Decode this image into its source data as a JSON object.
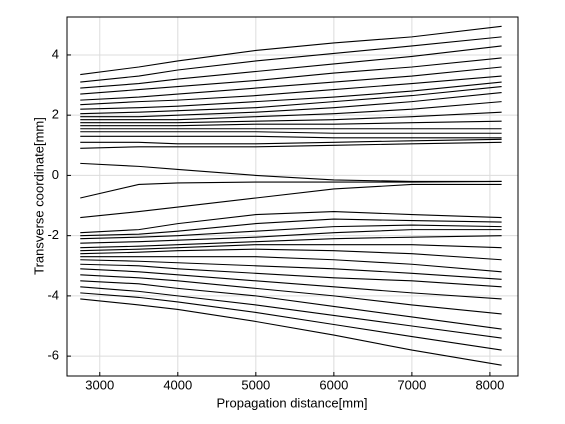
{
  "chart_data": {
    "type": "line",
    "xlabel": "Propagation distance[mm]",
    "ylabel": "Transverse coordinate[mm]",
    "x": [
      2750,
      3500,
      4000,
      5000,
      6000,
      7000,
      8150
    ],
    "xlim": [
      2580,
      8360
    ],
    "ylim": [
      -6.66,
      5.26
    ],
    "xticks": [
      3000,
      4000,
      5000,
      6000,
      7000,
      8000
    ],
    "yticks": [
      -6,
      -4,
      -2,
      0,
      2,
      4
    ],
    "grid": true,
    "color": "#000000",
    "series": [
      {
        "values": [
          3.35,
          3.6,
          3.8,
          4.15,
          4.4,
          4.6,
          4.95
        ]
      },
      {
        "values": [
          3.1,
          3.3,
          3.5,
          3.8,
          4.05,
          4.3,
          4.6
        ]
      },
      {
        "values": [
          2.9,
          3.05,
          3.2,
          3.45,
          3.7,
          3.95,
          4.3
        ]
      },
      {
        "values": [
          2.7,
          2.85,
          2.95,
          3.15,
          3.4,
          3.6,
          3.9
        ]
      },
      {
        "values": [
          2.5,
          2.6,
          2.7,
          2.9,
          3.1,
          3.3,
          3.6
        ]
      },
      {
        "values": [
          2.35,
          2.45,
          2.5,
          2.65,
          2.85,
          3.05,
          3.3
        ]
      },
      {
        "values": [
          2.2,
          2.25,
          2.3,
          2.45,
          2.6,
          2.8,
          3.1
        ]
      },
      {
        "values": [
          2.05,
          2.1,
          2.15,
          2.25,
          2.45,
          2.65,
          2.95
        ]
      },
      {
        "values": [
          1.95,
          1.95,
          2.0,
          2.1,
          2.25,
          2.45,
          2.75
        ]
      },
      {
        "values": [
          1.85,
          1.85,
          1.85,
          1.95,
          2.05,
          2.2,
          2.45
        ]
      },
      {
        "values": [
          1.75,
          1.75,
          1.75,
          1.8,
          1.85,
          1.95,
          2.1
        ]
      },
      {
        "values": [
          1.65,
          1.65,
          1.65,
          1.7,
          1.7,
          1.75,
          1.8
        ]
      },
      {
        "values": [
          1.55,
          1.55,
          1.55,
          1.55,
          1.55,
          1.55,
          1.55
        ]
      },
      {
        "values": [
          1.45,
          1.45,
          1.45,
          1.45,
          1.4,
          1.4,
          1.4
        ]
      },
      {
        "values": [
          1.3,
          1.3,
          1.3,
          1.3,
          1.25,
          1.25,
          1.25
        ]
      },
      {
        "values": [
          1.1,
          1.1,
          1.05,
          1.05,
          1.1,
          1.15,
          1.2
        ]
      },
      {
        "values": [
          0.9,
          0.95,
          0.95,
          0.95,
          1.0,
          1.05,
          1.1
        ]
      },
      {
        "values": [
          0.4,
          0.3,
          0.2,
          0.0,
          -0.15,
          -0.2,
          -0.2
        ]
      },
      {
        "values": [
          -0.75,
          -0.3,
          -0.25,
          -0.22,
          -0.22,
          -0.22,
          -0.2
        ]
      },
      {
        "values": [
          -1.4,
          -1.2,
          -1.05,
          -0.75,
          -0.45,
          -0.3,
          -0.3
        ]
      },
      {
        "values": [
          -1.9,
          -1.8,
          -1.6,
          -1.3,
          -1.2,
          -1.3,
          -1.4
        ]
      },
      {
        "values": [
          -2.0,
          -1.95,
          -1.85,
          -1.6,
          -1.45,
          -1.5,
          -1.55
        ]
      },
      {
        "values": [
          -2.1,
          -2.05,
          -2.0,
          -1.85,
          -1.7,
          -1.65,
          -1.7
        ]
      },
      {
        "values": [
          -2.25,
          -2.2,
          -2.15,
          -2.05,
          -1.9,
          -1.8,
          -1.8
        ]
      },
      {
        "values": [
          -2.4,
          -2.35,
          -2.3,
          -2.2,
          -2.1,
          -2.05,
          -2.0
        ]
      },
      {
        "values": [
          -2.5,
          -2.45,
          -2.4,
          -2.3,
          -2.3,
          -2.3,
          -2.4
        ]
      },
      {
        "values": [
          -2.6,
          -2.55,
          -2.5,
          -2.45,
          -2.5,
          -2.6,
          -2.8
        ]
      },
      {
        "values": [
          -2.7,
          -2.7,
          -2.7,
          -2.7,
          -2.8,
          -2.95,
          -3.2
        ]
      },
      {
        "values": [
          -2.8,
          -2.85,
          -2.9,
          -3.0,
          -3.1,
          -3.25,
          -3.45
        ]
      },
      {
        "values": [
          -2.95,
          -3.0,
          -3.1,
          -3.25,
          -3.4,
          -3.5,
          -3.7
        ]
      },
      {
        "values": [
          -3.1,
          -3.2,
          -3.3,
          -3.5,
          -3.7,
          -3.9,
          -4.1
        ]
      },
      {
        "values": [
          -3.3,
          -3.4,
          -3.5,
          -3.75,
          -4.0,
          -4.3,
          -4.6
        ]
      },
      {
        "values": [
          -3.5,
          -3.6,
          -3.75,
          -4.0,
          -4.35,
          -4.7,
          -5.1
        ]
      },
      {
        "values": [
          -3.7,
          -3.85,
          -4.0,
          -4.3,
          -4.65,
          -5.0,
          -5.4
        ]
      },
      {
        "values": [
          -3.9,
          -4.05,
          -4.2,
          -4.55,
          -4.95,
          -5.35,
          -5.8
        ]
      },
      {
        "values": [
          -4.1,
          -4.3,
          -4.45,
          -4.85,
          -5.3,
          -5.8,
          -6.3
        ]
      }
    ]
  }
}
